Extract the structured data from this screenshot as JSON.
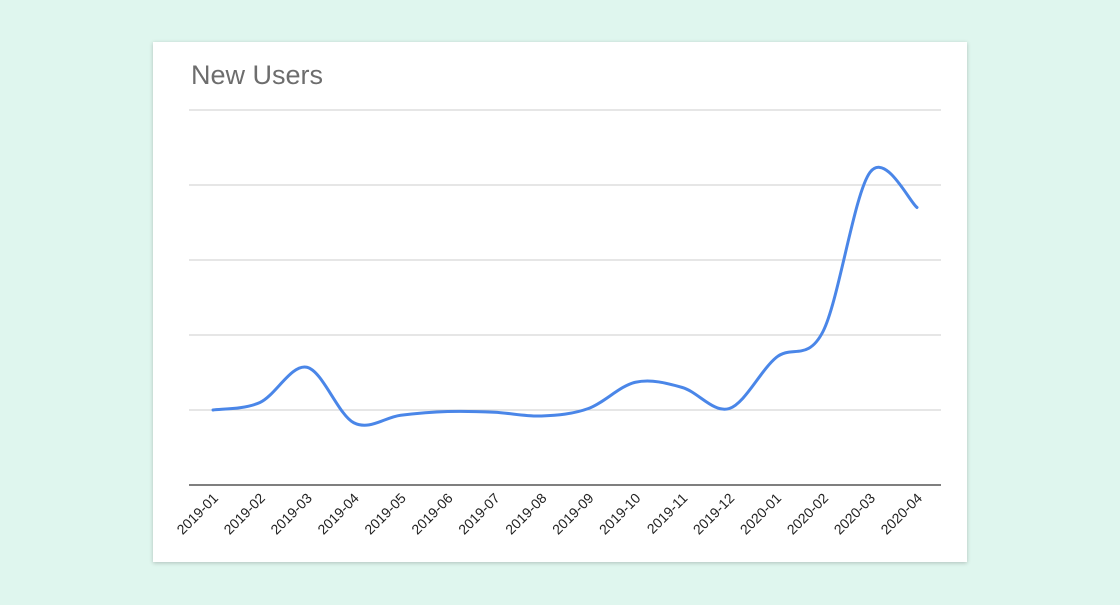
{
  "chart_data": {
    "type": "line",
    "title": "New Users",
    "xlabel": "",
    "ylabel": "",
    "categories": [
      "2019-01",
      "2019-02",
      "2019-03",
      "2019-04",
      "2019-05",
      "2019-06",
      "2019-07",
      "2019-08",
      "2019-09",
      "2019-10",
      "2019-11",
      "2019-12",
      "2020-01",
      "2020-02",
      "2020-03",
      "2020-04"
    ],
    "series": [
      {
        "values": [
          1.0,
          1.1,
          1.57,
          0.83,
          0.93,
          0.98,
          0.97,
          0.92,
          1.02,
          1.37,
          1.3,
          1.02,
          1.7,
          2.05,
          4.17,
          3.7
        ]
      }
    ],
    "ylim": [
      0,
      5
    ],
    "y_gridlines": 5,
    "y_tick_labels_visible": false,
    "grid": true,
    "legend": "none",
    "colors": {
      "line": "#4a86e8",
      "grid": "#cccccc",
      "axis": "#333333",
      "background": "#dff6ee"
    }
  }
}
